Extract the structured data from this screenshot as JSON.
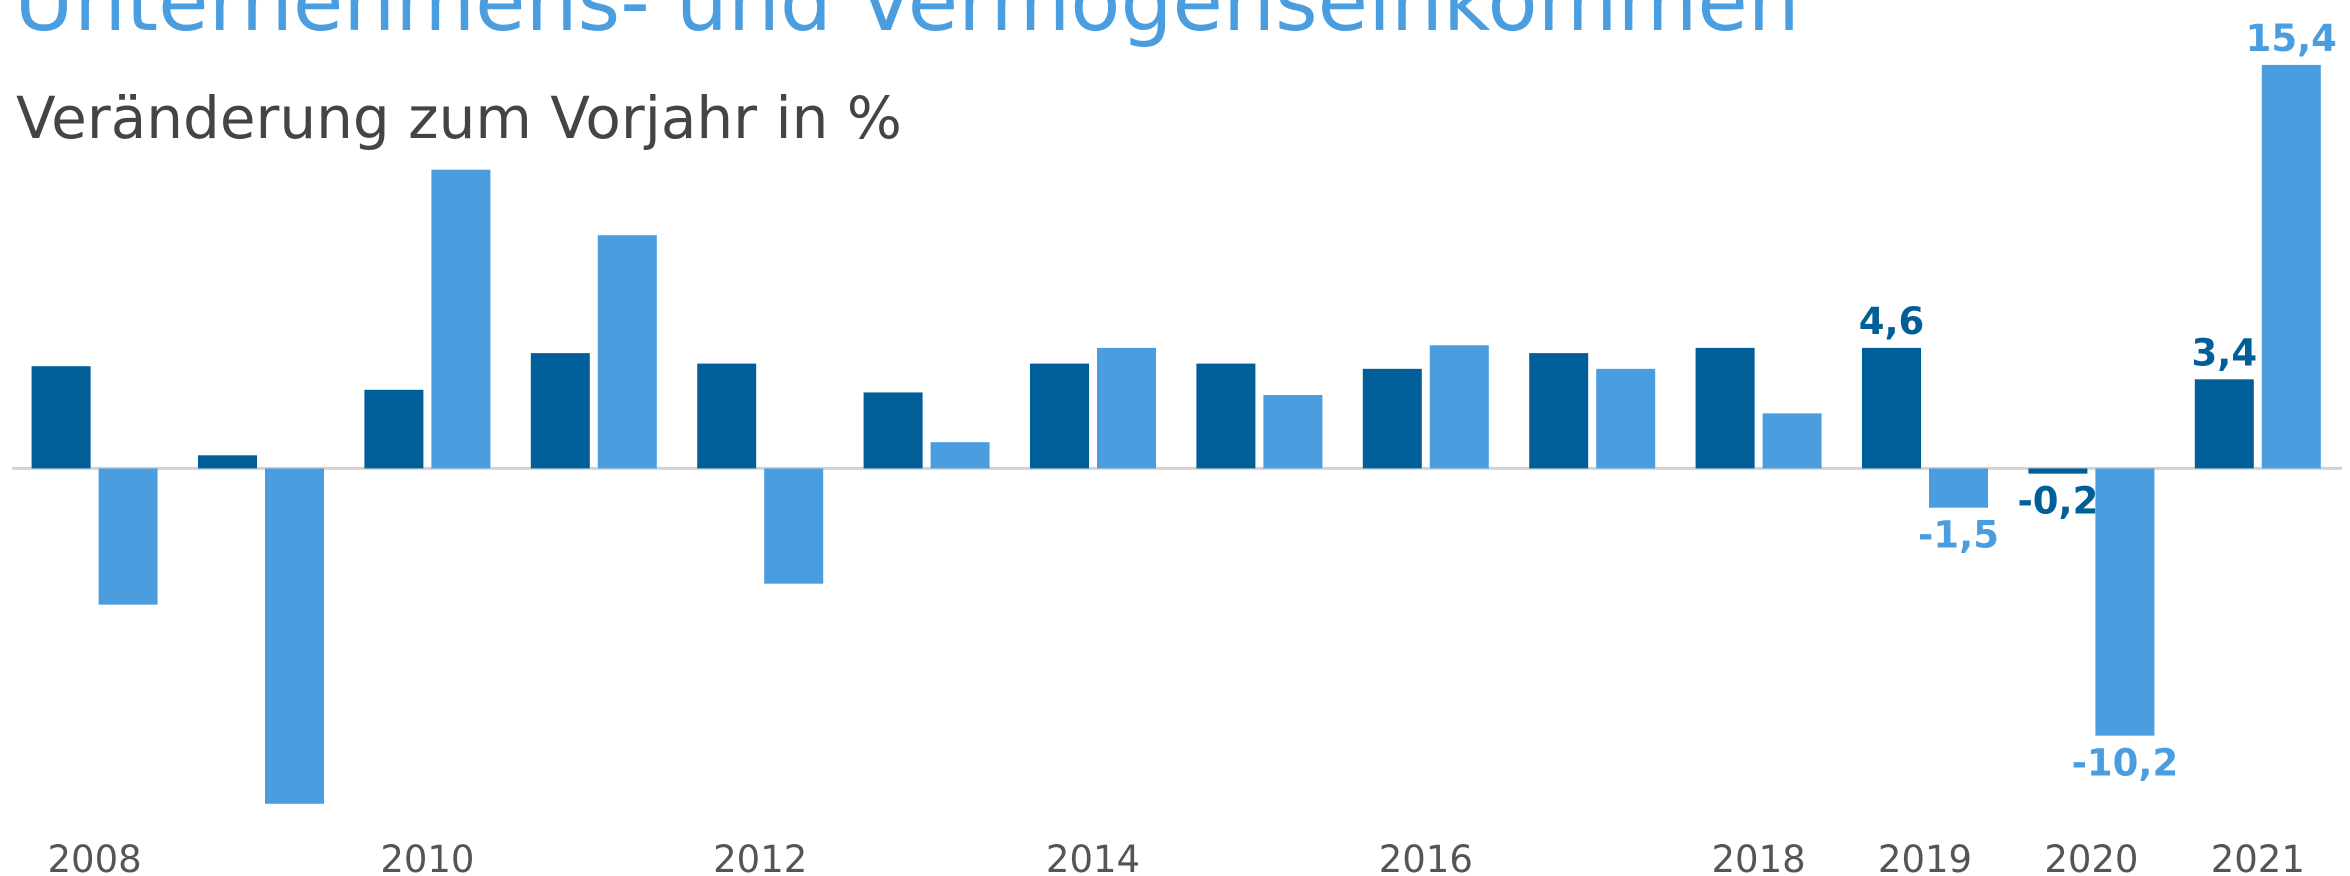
{
  "chart_data": {
    "type": "bar",
    "title": "Unternehmens- und Vermögenseinkommen",
    "subtitle": "Veränderung zum Vorjahr in %",
    "categories": [
      "2008",
      null,
      "2010",
      null,
      "2012",
      null,
      "2014",
      null,
      "2016",
      null,
      "2018",
      "2019",
      "2020",
      "2021"
    ],
    "series": [
      {
        "color": "#005f99",
        "values": [
          3.9,
          0.5,
          3.0,
          4.4,
          4.0,
          2.9,
          4.0,
          4.0,
          3.8,
          4.4,
          4.6,
          4.6,
          -0.2,
          3.4
        ],
        "value_labels": [
          null,
          null,
          null,
          null,
          null,
          null,
          null,
          null,
          null,
          null,
          null,
          "4,6",
          "-0,2",
          "3,4"
        ]
      },
      {
        "color": "#4a9ddf",
        "values": [
          -5.2,
          -12.8,
          11.4,
          8.9,
          -4.4,
          1.0,
          4.6,
          2.8,
          4.7,
          3.8,
          2.1,
          -1.5,
          -10.2,
          15.4
        ],
        "value_labels": [
          null,
          null,
          null,
          null,
          null,
          null,
          null,
          null,
          null,
          null,
          null,
          "-1,5",
          "-10,2",
          "15,4"
        ]
      }
    ],
    "ylim": [
      -13,
      17
    ]
  }
}
